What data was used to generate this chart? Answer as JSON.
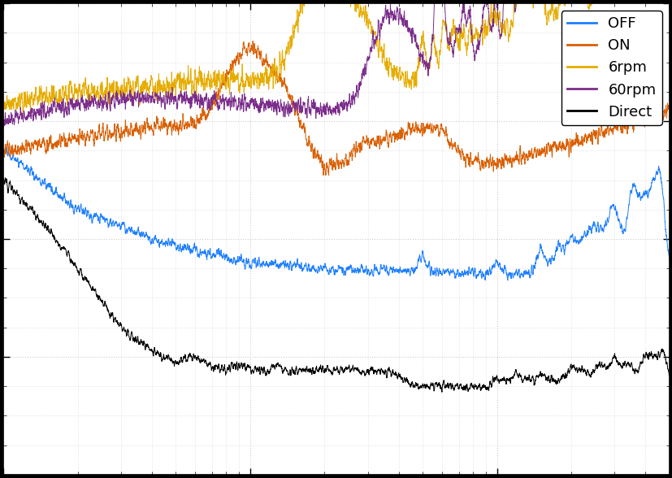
{
  "title": "",
  "xlabel": "",
  "ylabel": "",
  "legend_labels": [
    "OFF",
    "ON",
    "6rpm",
    "60rpm",
    "Direct"
  ],
  "colors": [
    "#1f7fff",
    "#d95f02",
    "#e6ac00",
    "#7b2d8b",
    "#000000"
  ],
  "background_color": "#ffffff",
  "grid_color": "#cccccc",
  "legend_loc": "upper right",
  "figsize": [
    8.28,
    5.88
  ],
  "dpi": 100,
  "xmin": 1,
  "xmax": 500,
  "ymin": -160,
  "ymax": -80
}
